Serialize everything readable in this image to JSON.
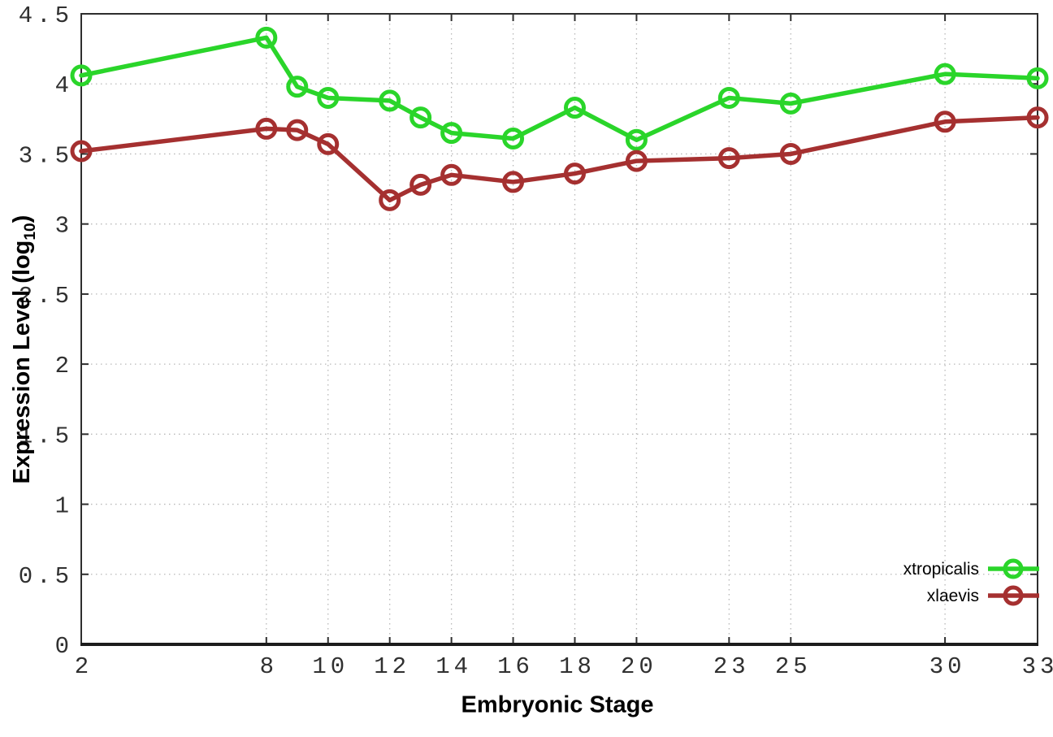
{
  "chart_data": {
    "type": "line",
    "title": "",
    "xlabel": "Embryonic Stage",
    "ylabel_prefix": "Expression Level (log",
    "ylabel_sub": "10",
    "ylabel_suffix": ")",
    "x": [
      2,
      8,
      9,
      10,
      12,
      13,
      14,
      16,
      18,
      20,
      23,
      25,
      30,
      33
    ],
    "xlim": [
      2,
      33
    ],
    "ylim": [
      0,
      4.5
    ],
    "xticks": [
      2,
      8,
      10,
      12,
      14,
      16,
      18,
      20,
      23,
      25,
      30,
      33
    ],
    "xtick_labels": [
      "2",
      "8",
      "10",
      "12",
      "14",
      "16",
      "18",
      "20",
      "23",
      "25",
      "30",
      "33"
    ],
    "yticks": [
      0,
      0.5,
      1,
      1.5,
      2,
      2.5,
      3,
      3.5,
      4,
      4.5
    ],
    "ytick_labels": [
      "0",
      "0.5",
      "1",
      "1.5",
      "2",
      "2.5",
      "3",
      "3.5",
      "4",
      "4.5"
    ],
    "grid": true,
    "grid_style": "dotted",
    "legend_position": "inside-bottom-right",
    "series": [
      {
        "name": "xtropicalis",
        "color": "#2ad52a",
        "values": [
          4.06,
          4.33,
          3.98,
          3.9,
          3.88,
          3.76,
          3.65,
          3.61,
          3.83,
          3.6,
          3.9,
          3.86,
          4.07,
          4.04
        ]
      },
      {
        "name": "xlaevis",
        "color": "#a53030",
        "values": [
          3.52,
          3.68,
          3.67,
          3.57,
          3.17,
          3.28,
          3.35,
          3.3,
          3.36,
          3.45,
          3.47,
          3.5,
          3.73,
          3.76
        ]
      }
    ],
    "style": {
      "border_color": "#2e2e2e",
      "grid_color": "#b8b8b8",
      "marker_radius": 11,
      "line_width": 5.5,
      "marker_stroke": 5
    }
  }
}
